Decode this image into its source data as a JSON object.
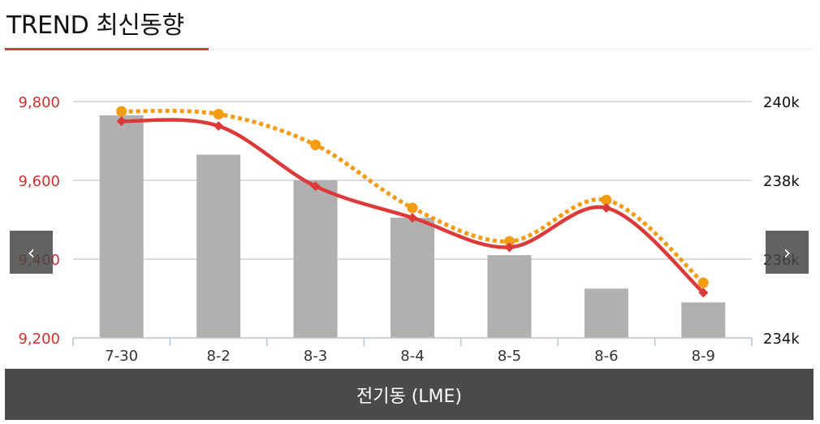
{
  "header": {
    "title": "TREND 최신동향"
  },
  "nav": {
    "prev_icon": "chevron-left-icon",
    "next_icon": "chevron-right-icon",
    "prev_glyph": "‹",
    "next_glyph": "›"
  },
  "footer": {
    "label": "전기동 (LME)"
  },
  "colors": {
    "bar": "#b0b0b0",
    "line": "#dc3a3a",
    "dotted": "#f39c12",
    "left_axis_text": "#c83232",
    "grid": "#c8c8c8"
  },
  "chart_data": {
    "type": "bar",
    "categories": [
      "7-30",
      "8-2",
      "8-3",
      "8-4",
      "8-5",
      "8-6",
      "8-9"
    ],
    "y_left": {
      "ticks": [
        9200,
        9400,
        9600,
        9800
      ],
      "tick_labels": [
        "9,200",
        "9,400",
        "9,600",
        "9,800"
      ],
      "ylim": [
        9200,
        9800
      ]
    },
    "y_right": {
      "ticks": [
        234,
        236,
        238,
        240
      ],
      "tick_labels": [
        "234k",
        "236k",
        "238k",
        "240k"
      ],
      "ylim": [
        234,
        240
      ]
    },
    "grid": true,
    "series": [
      {
        "kind": "bar",
        "axis": "left",
        "values": [
          9765,
          9665,
          9600,
          9505,
          9410,
          9325,
          9290
        ]
      },
      {
        "kind": "line",
        "axis": "left",
        "marker": "diamond",
        "values": [
          9750,
          9738,
          9585,
          9505,
          9430,
          9530,
          9315
        ]
      },
      {
        "kind": "line-dotted",
        "axis": "left",
        "marker": "circle",
        "values": [
          9775,
          9768,
          9690,
          9530,
          9445,
          9550,
          9340
        ]
      }
    ]
  }
}
